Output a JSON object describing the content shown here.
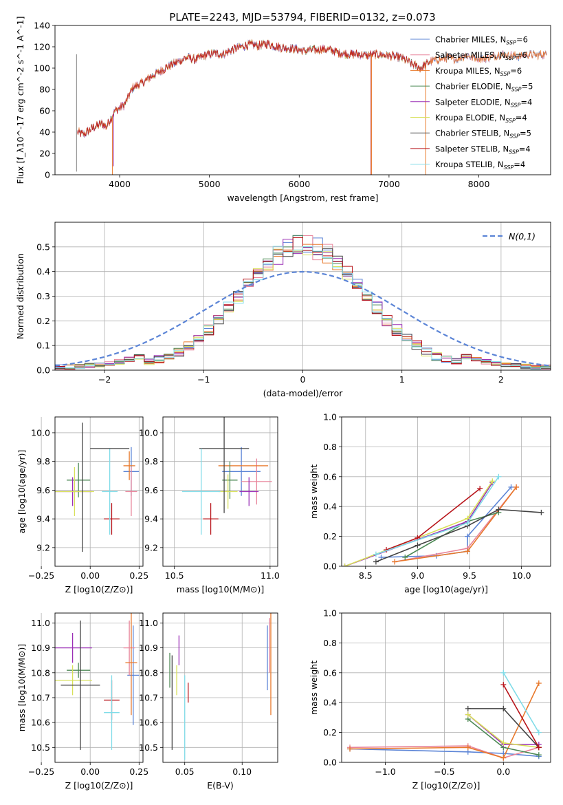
{
  "figure": {
    "title": "PLATE=2243, MJD=53794, FIBERID=0132, z=0.073"
  },
  "colors": {
    "series": [
      "#5b84d6",
      "#e8849a",
      "#e8782a",
      "#4e8a56",
      "#9a2fb6",
      "#d8e05a",
      "#444444",
      "#b8141a",
      "#80dce8"
    ],
    "gauss": "#5b84d6",
    "grid": "#b0b0b0"
  },
  "chart_data": [
    {
      "id": "spectrum",
      "type": "line",
      "xlabel": "wavelength [Angstrom, rest frame]",
      "ylabel": "Flux [f_λ10^-17 erg cm^-2 s^-1 A^-1]",
      "xlim": [
        3280,
        8800
      ],
      "ylim": [
        0,
        140
      ],
      "xticks": [
        "4000",
        "5000",
        "6000",
        "7000",
        "8000"
      ],
      "yticks": [
        "0",
        "20",
        "40",
        "60",
        "80",
        "100",
        "120",
        "140"
      ],
      "grid": false,
      "legend": "top-right",
      "continuum": [
        [
          3530,
          40
        ],
        [
          3600,
          38
        ],
        [
          3700,
          44
        ],
        [
          3800,
          48
        ],
        [
          3850,
          45
        ],
        [
          3950,
          60
        ],
        [
          4050,
          65
        ],
        [
          4150,
          82
        ],
        [
          4250,
          86
        ],
        [
          4350,
          92
        ],
        [
          4450,
          97
        ],
        [
          4550,
          102
        ],
        [
          4650,
          106
        ],
        [
          4750,
          110
        ],
        [
          4850,
          108
        ],
        [
          4950,
          112
        ],
        [
          5050,
          114
        ],
        [
          5150,
          113
        ],
        [
          5250,
          117
        ],
        [
          5350,
          120
        ],
        [
          5450,
          122
        ],
        [
          5550,
          121
        ],
        [
          5650,
          123
        ],
        [
          5750,
          120
        ],
        [
          5850,
          119
        ],
        [
          5950,
          118
        ],
        [
          6050,
          116
        ],
        [
          6150,
          117
        ],
        [
          6250,
          118
        ],
        [
          6350,
          117
        ],
        [
          6450,
          114
        ],
        [
          6550,
          113
        ],
        [
          6650,
          113
        ],
        [
          6750,
          112
        ],
        [
          6850,
          113
        ],
        [
          6950,
          112
        ],
        [
          7050,
          111
        ],
        [
          7150,
          109
        ],
        [
          7250,
          104
        ],
        [
          7350,
          100
        ],
        [
          7450,
          106
        ],
        [
          7550,
          108
        ],
        [
          7650,
          110
        ],
        [
          7750,
          108
        ],
        [
          7850,
          112
        ],
        [
          7950,
          110
        ],
        [
          8050,
          109
        ],
        [
          8150,
          111
        ],
        [
          8250,
          113
        ],
        [
          8350,
          112
        ],
        [
          8450,
          111
        ],
        [
          8550,
          113
        ],
        [
          8650,
          112
        ],
        [
          8760,
          113
        ]
      ],
      "drops": [
        [
          3520,
          3,
          "#888888"
        ],
        [
          3920,
          0,
          "#e8782a"
        ],
        [
          3930,
          8,
          "#9a2fb6"
        ],
        [
          6800,
          0,
          "#b8141a"
        ],
        [
          6805,
          0,
          "#e8782a"
        ],
        [
          7410,
          0,
          "#e8782a"
        ]
      ],
      "series": [
        {
          "name": "Chabrier MILES, N_SSP=6",
          "tail": true
        },
        {
          "name": "Salpeter MILES, N_SSP=6",
          "tail": true
        },
        {
          "name": "Kroupa MILES, N_SSP=6",
          "tail": true
        },
        {
          "name": "Chabrier ELODIE, N_SSP=5",
          "tail": false
        },
        {
          "name": "Salpeter ELODIE, N_SSP=4",
          "tail": false
        },
        {
          "name": "Kroupa ELODIE, N_SSP=4",
          "tail": false
        },
        {
          "name": "Chabrier STELIB, N_SSP=5",
          "tail": true
        },
        {
          "name": "Salpeter STELIB, N_SSP=4",
          "tail": false
        },
        {
          "name": "Kroupa STELIB, N_SSP=4",
          "tail": false
        }
      ]
    },
    {
      "id": "residuals",
      "type": "line",
      "xlabel": "(data-model)/error",
      "ylabel": "Normed distribution",
      "xlim": [
        -2.5,
        2.5
      ],
      "ylim": [
        0,
        0.6
      ],
      "xticks": [
        "−2",
        "−1",
        "0",
        "1",
        "2"
      ],
      "yticks": [
        "0.0",
        "0.1",
        "0.2",
        "0.3",
        "0.4",
        "0.5"
      ],
      "grid": true,
      "legend": "top-right",
      "gauss_label": "N(0,1)",
      "bin_width": 0.1
    },
    {
      "id": "z-age",
      "type": "scatter",
      "xlabel": "Z [log10(Z/Z⊙)]",
      "ylabel": "age [log10(age/yr)]",
      "xlim": [
        -0.18,
        0.27
      ],
      "ylim": [
        9.07,
        10.11
      ],
      "xticks": [
        "−0.25",
        "0.00",
        "0.25"
      ],
      "yticks": [
        "9.2",
        "9.4",
        "9.6",
        "9.8",
        "10.0"
      ],
      "grid": true,
      "points": [
        {
          "x": 0.21,
          "y": 9.73,
          "xe": 0.04,
          "ye": 0.17
        },
        {
          "x": 0.21,
          "y": 9.59,
          "xe": 0.03,
          "ye": 0.17
        },
        {
          "x": 0.2,
          "y": 9.77,
          "xe": 0.03,
          "ye": 0.1
        },
        {
          "x": -0.06,
          "y": 9.67,
          "xe": 0.06,
          "ye": 0.12
        },
        {
          "x": -0.09,
          "y": 9.59,
          "xe": 0.1,
          "ye": 0.1
        },
        {
          "x": -0.08,
          "y": 9.59,
          "xe": 0.1,
          "ye": 0.17
        },
        {
          "x": -0.04,
          "y": 9.62,
          "xe": 0.0,
          "ye": 0.45
        },
        {
          "x": 0.11,
          "y": 9.4,
          "xe": 0.04,
          "ye": 0.11
        },
        {
          "x": 0.1,
          "y": 9.59,
          "xe": 0.04,
          "ye": 0.3
        }
      ],
      "extra": [
        {
          "x": 0.1,
          "y": 9.89,
          "xe": 0.1,
          "ye": 0,
          "c": 6
        }
      ]
    },
    {
      "id": "mass-age",
      "type": "scatter",
      "xlabel": "mass [log10(M/M⊙)]",
      "ylabel": "",
      "xlim": [
        10.44,
        11.04
      ],
      "ylim": [
        9.07,
        10.11
      ],
      "xticks": [
        "10.5",
        "11.0"
      ],
      "yticks": [
        "9.2",
        "9.4",
        "9.6",
        "9.8",
        "10.0"
      ],
      "grid": true,
      "points": [
        {
          "x": 10.85,
          "y": 9.73,
          "xe": 0.1,
          "ye": 0.17
        },
        {
          "x": 10.93,
          "y": 9.66,
          "xe": 0.08,
          "ye": 0.16
        },
        {
          "x": 10.86,
          "y": 9.77,
          "xe": 0.13,
          "ye": 0.0
        },
        {
          "x": 10.79,
          "y": 9.67,
          "xe": 0.04,
          "ye": 0.13
        },
        {
          "x": 10.89,
          "y": 9.59,
          "xe": 0.05,
          "ye": 0.1
        },
        {
          "x": 10.78,
          "y": 9.59,
          "xe": 0.05,
          "ye": 0.12
        },
        {
          "x": 10.76,
          "y": 9.89,
          "xe": 0.13,
          "ye": 0.45
        },
        {
          "x": 10.69,
          "y": 9.4,
          "xe": 0.04,
          "ye": 0.11
        },
        {
          "x": 10.64,
          "y": 9.59,
          "xe": 0.1,
          "ye": 0.3
        }
      ]
    },
    {
      "id": "age-weight",
      "type": "line",
      "xlabel": "age [log10(age/yr)]",
      "ylabel": "mass weight",
      "xlim": [
        8.27,
        10.28
      ],
      "ylim": [
        0,
        1
      ],
      "xticks": [
        "8.5",
        "9.0",
        "9.5",
        "10.0"
      ],
      "yticks": [
        "0.0",
        "0.2",
        "0.4",
        "0.6",
        "0.8",
        "1.0"
      ],
      "grid": true,
      "series": [
        {
          "pts": [
            [
              8.65,
              0.06
            ],
            [
              9.18,
              0.07
            ],
            [
              9.48,
              0.1
            ],
            [
              9.48,
              0.2
            ],
            [
              9.9,
              0.53
            ]
          ]
        },
        {
          "pts": [
            [
              8.78,
              0.03
            ],
            [
              9.48,
              0.12
            ],
            [
              9.95,
              0.53
            ]
          ]
        },
        {
          "pts": [
            [
              8.78,
              0.03
            ],
            [
              9.48,
              0.1
            ],
            [
              9.95,
              0.53
            ]
          ]
        },
        {
          "pts": [
            [
              8.88,
              0.06
            ],
            [
              9.48,
              0.3
            ],
            [
              9.78,
              0.36
            ]
          ]
        },
        {
          "pts": [
            [
              8.3,
              0.0
            ],
            [
              9.48,
              0.3
            ],
            [
              9.72,
              0.56
            ]
          ]
        },
        {
          "pts": [
            [
              8.3,
              0.0
            ],
            [
              9.48,
              0.32
            ],
            [
              9.72,
              0.57
            ]
          ]
        },
        {
          "pts": [
            [
              8.6,
              0.03
            ],
            [
              9.0,
              0.14
            ],
            [
              9.48,
              0.27
            ],
            [
              9.78,
              0.38
            ],
            [
              10.19,
              0.36
            ]
          ]
        },
        {
          "pts": [
            [
              8.7,
              0.11
            ],
            [
              9.0,
              0.19
            ],
            [
              9.6,
              0.52
            ]
          ]
        },
        {
          "pts": [
            [
              8.6,
              0.08
            ],
            [
              9.48,
              0.29
            ],
            [
              9.78,
              0.6
            ]
          ]
        }
      ]
    },
    {
      "id": "z-mass",
      "type": "scatter",
      "xlabel": "Z [log10(Z/Z⊙)]",
      "ylabel": "mass [log10(M/M⊙)]",
      "xlim": [
        -0.18,
        0.27
      ],
      "ylim": [
        10.44,
        11.04
      ],
      "xticks": [
        "−0.25",
        "0.00",
        "0.25"
      ],
      "yticks": [
        "10.5",
        "10.6",
        "10.7",
        "10.8",
        "10.9",
        "11.0"
      ],
      "grid": true,
      "points": [
        {
          "x": 0.22,
          "y": 10.79,
          "xe": 0.03,
          "ye": 0.2
        },
        {
          "x": 0.2,
          "y": 10.9,
          "xe": 0.03,
          "ye": 0.11
        },
        {
          "x": 0.21,
          "y": 10.84,
          "xe": 0.03,
          "ye": 0.21
        },
        {
          "x": -0.06,
          "y": 10.81,
          "xe": 0.06,
          "ye": 0.03
        },
        {
          "x": -0.09,
          "y": 10.9,
          "xe": 0.1,
          "ye": 0.06
        },
        {
          "x": -0.09,
          "y": 10.77,
          "xe": 0.1,
          "ye": 0.06
        },
        {
          "x": -0.05,
          "y": 10.75,
          "xe": 0.1,
          "ye": 0.26
        },
        {
          "x": 0.11,
          "y": 10.69,
          "xe": 0.04,
          "ye": 0.08
        },
        {
          "x": 0.11,
          "y": 10.64,
          "xe": 0.04,
          "ye": 0.15
        }
      ]
    },
    {
      "id": "ebv-mass",
      "type": "scatter",
      "xlabel": "E(B-V)",
      "ylabel": "",
      "xlim": [
        0.031,
        0.131
      ],
      "ylim": [
        10.44,
        11.04
      ],
      "xticks": [
        "0.05",
        "0.10"
      ],
      "yticks": [
        "10.5",
        "10.6",
        "10.7",
        "10.8",
        "10.9",
        "11.0"
      ],
      "grid": true,
      "points": [
        {
          "x": 0.122,
          "y": 10.86,
          "xe": 0,
          "ye": 0.13
        },
        {
          "x": 0.124,
          "y": 10.91,
          "xe": 0,
          "ye": 0.11
        },
        {
          "x": 0.125,
          "y": 10.84,
          "xe": 0,
          "ye": 0.21
        },
        {
          "x": 0.037,
          "y": 10.81,
          "xe": 0,
          "ye": 0.07
        },
        {
          "x": 0.045,
          "y": 10.89,
          "xe": 0,
          "ye": 0.06
        },
        {
          "x": 0.043,
          "y": 10.77,
          "xe": 0,
          "ye": 0.06
        },
        {
          "x": 0.039,
          "y": 10.68,
          "xe": 0,
          "ye": 0.19
        },
        {
          "x": 0.053,
          "y": 10.72,
          "xe": 0,
          "ye": 0.04
        },
        {
          "x": 0.05,
          "y": 10.62,
          "xe": 0,
          "ye": 0.17
        }
      ]
    },
    {
      "id": "z-weight",
      "type": "line",
      "xlabel": "Z [log10(Z/Z⊙)]",
      "ylabel": "mass weight",
      "xlim": [
        -1.37,
        0.4
      ],
      "ylim": [
        0,
        1
      ],
      "xticks": [
        "−1.0",
        "−0.5",
        "0.0"
      ],
      "yticks": [
        "0.0",
        "0.2",
        "0.4",
        "0.6",
        "0.8",
        "1.0"
      ],
      "grid": true,
      "series": [
        {
          "pts": [
            [
              -1.3,
              0.09
            ],
            [
              -0.3,
              0.07
            ],
            [
              0.0,
              0.06
            ],
            [
              0.3,
              0.04
            ]
          ]
        },
        {
          "pts": [
            [
              -1.3,
              0.1
            ],
            [
              -0.3,
              0.11
            ],
            [
              0.0,
              0.03
            ],
            [
              0.3,
              0.1
            ]
          ]
        },
        {
          "pts": [
            [
              -1.3,
              0.09
            ],
            [
              -0.3,
              0.1
            ],
            [
              0.0,
              0.03
            ],
            [
              0.3,
              0.53
            ]
          ]
        },
        {
          "pts": [
            [
              -0.3,
              0.29
            ],
            [
              0.0,
              0.1
            ],
            [
              0.3,
              0.05
            ]
          ]
        },
        {
          "pts": [
            [
              -0.3,
              0.32
            ],
            [
              0.0,
              0.12
            ],
            [
              0.3,
              0.12
            ]
          ]
        },
        {
          "pts": [
            [
              -0.3,
              0.32
            ],
            [
              0.0,
              0.13
            ],
            [
              0.3,
              0.1
            ]
          ]
        },
        {
          "pts": [
            [
              -0.3,
              0.36
            ],
            [
              0.0,
              0.36
            ],
            [
              0.3,
              0.1
            ]
          ]
        },
        {
          "pts": [
            [
              0.0,
              0.52
            ],
            [
              0.3,
              0.1
            ]
          ]
        },
        {
          "pts": [
            [
              0.0,
              0.6
            ],
            [
              0.3,
              0.2
            ]
          ]
        }
      ]
    }
  ]
}
